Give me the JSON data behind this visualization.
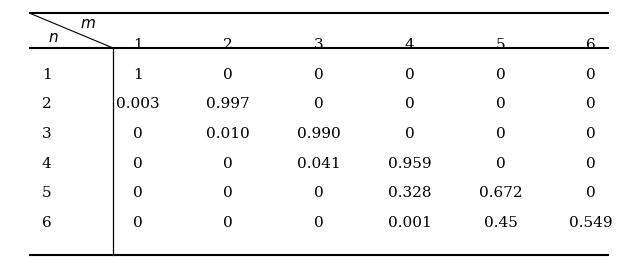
{
  "col_headers": [
    "1",
    "2",
    "3",
    "4",
    "5",
    "6"
  ],
  "row_headers": [
    "1",
    "2",
    "3",
    "4",
    "5",
    "6"
  ],
  "table_data": [
    [
      "1",
      "0",
      "0",
      "0",
      "0",
      "0"
    ],
    [
      "0.003",
      "0.997",
      "0",
      "0",
      "0",
      "0"
    ],
    [
      "0",
      "0.010",
      "0.990",
      "0",
      "0",
      "0"
    ],
    [
      "0",
      "0",
      "0.041",
      "0.959",
      "0",
      "0"
    ],
    [
      "0",
      "0",
      "0",
      "0.328",
      "0.672",
      "0"
    ],
    [
      "0",
      "0",
      "0",
      "0.001",
      "0.45",
      "0.549"
    ]
  ],
  "m_label": "$m$",
  "n_label": "$n$",
  "font_size": 11,
  "header_font_size": 11,
  "lw_thick": 1.5,
  "lw_thin": 0.9
}
